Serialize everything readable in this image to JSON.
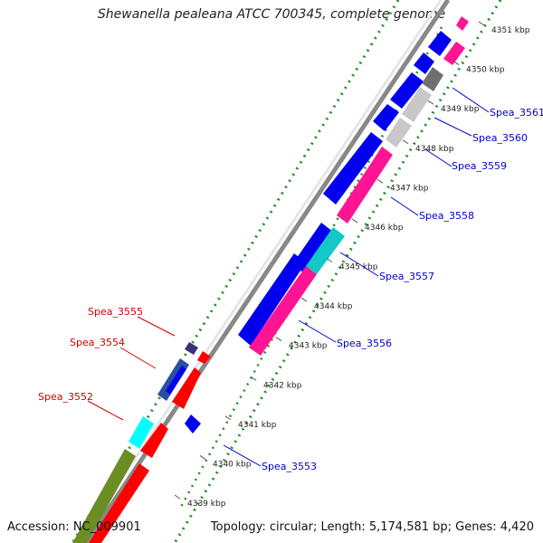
{
  "title": "Shewanella pealeana ATCC 700345, complete genome",
  "footer": {
    "accession": "Accession: NC_009901",
    "summary": "Topology: circular; Length: 5,174,581 bp; Genes: 4,420"
  },
  "colors": {
    "blue": "#0000ee",
    "red": "#ff0000",
    "magenta": "#ff1493",
    "cyan": "#14c8c8",
    "cyan_light": "#00ffff",
    "olive": "#6b8e23",
    "grey_dark": "#707070",
    "grey_light": "#c8c8c8",
    "navy": "#3a2f7a",
    "steel": "#2a4fa0",
    "forward_label": "#0000cc",
    "reverse_label": "#cc0000",
    "dots": "#228b22"
  },
  "ticks": [
    {
      "label": "4339 kbp"
    },
    {
      "label": "4340 kbp"
    },
    {
      "label": "4341 kbp"
    },
    {
      "label": "4342 kbp"
    },
    {
      "label": "4343 kbp"
    },
    {
      "label": "4344 kbp"
    },
    {
      "label": "4345 kbp"
    },
    {
      "label": "4346 kbp"
    },
    {
      "label": "4347 kbp"
    },
    {
      "label": "4348 kbp"
    },
    {
      "label": "4349 kbp"
    },
    {
      "label": "4350 kbp"
    },
    {
      "label": "4351 kbp"
    }
  ],
  "gene_labels": {
    "forward": [
      "Spea_3561",
      "Spea_3560",
      "Spea_3559",
      "Spea_3558",
      "Spea_3557",
      "Spea_3556",
      "Spea_3553"
    ],
    "reverse": [
      "Spea_3555",
      "Spea_3554",
      "Spea_3552"
    ]
  }
}
